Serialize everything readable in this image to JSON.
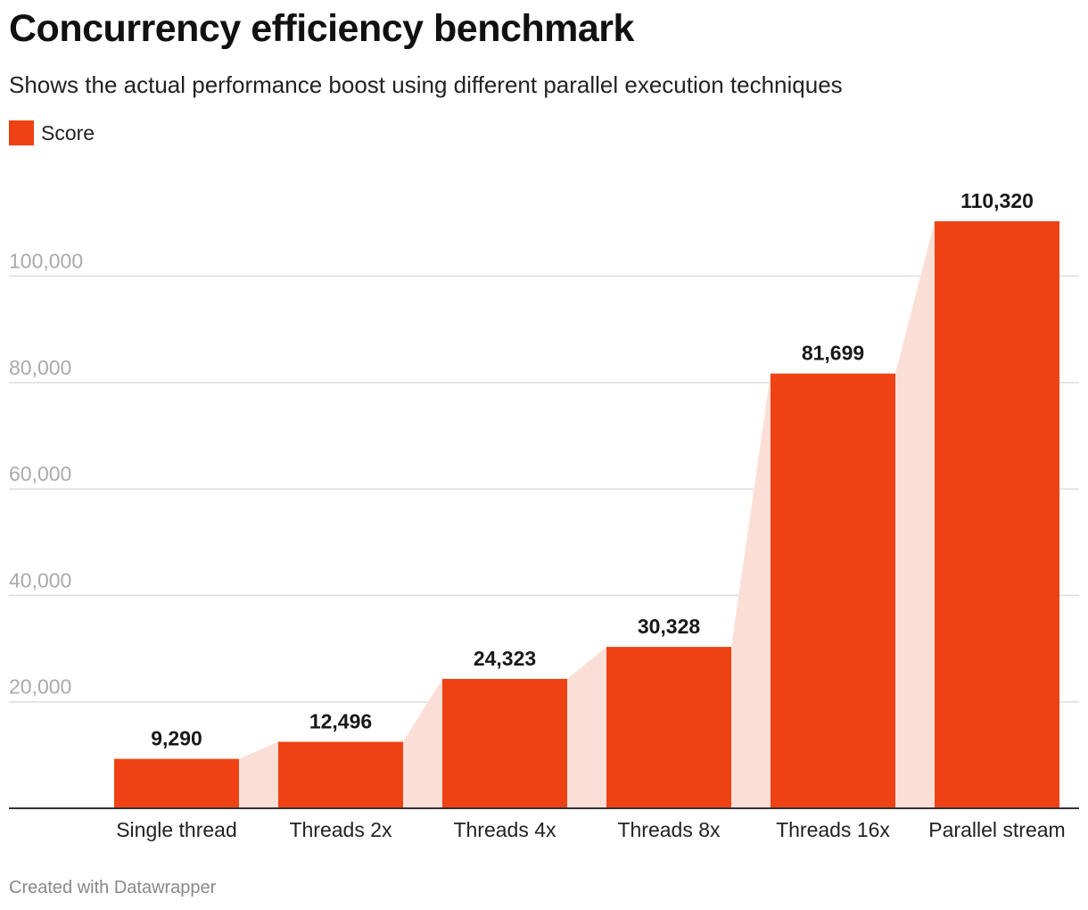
{
  "title": "Concurrency efficiency benchmark",
  "subtitle": "Shows the actual performance boost using different parallel execution techniques",
  "footer": "Created with Datawrapper",
  "colors": {
    "bar": "#ee4214",
    "connector": "#fbdfd7",
    "gridline": "#dddddd",
    "baseline": "#333333",
    "tick_label": "#aaaaaa"
  },
  "chart_data": {
    "type": "bar",
    "categories": [
      "Single thread",
      "Threads 2x",
      "Threads 4x",
      "Threads 8x",
      "Threads 16x",
      "Parallel stream"
    ],
    "series": [
      {
        "name": "Score",
        "values": [
          9290,
          12496,
          24323,
          30328,
          81699,
          110320
        ],
        "value_labels": [
          "9,290",
          "12,496",
          "24,323",
          "30,328",
          "81,699",
          "110,320"
        ]
      }
    ],
    "y_ticks": [
      20000,
      40000,
      60000,
      80000,
      100000
    ],
    "y_tick_labels": [
      "20,000",
      "40,000",
      "60,000",
      "80,000",
      "100,000"
    ],
    "ylim": [
      0,
      110320
    ],
    "grid": true,
    "legend": "top-left"
  }
}
